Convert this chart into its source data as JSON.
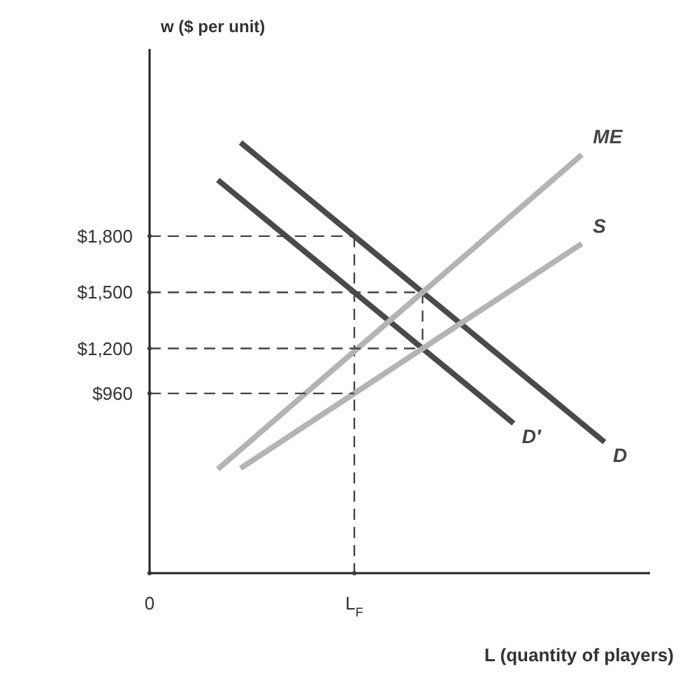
{
  "chart_data": {
    "type": "line",
    "ylabel": "w ($ per unit)",
    "xlabel": "L (quantity of players)",
    "categories": [
      "0",
      null,
      null,
      null,
      null,
      null,
      null,
      null,
      null,
      "L$_{F}$",
      null,
      null,
      null,
      null,
      null,
      null,
      null,
      null,
      null,
      null,
      null,
      null,
      null
    ],
    "ylim": [
      0,
      2800
    ],
    "yticks": [
      {
        "value": 960,
        "label": "$960"
      },
      {
        "value": 1200,
        "label": "$1,200"
      },
      {
        "value": 1500,
        "label": "$1,500"
      },
      {
        "value": 1800,
        "label": "$1,800"
      }
    ],
    "grid": false,
    "legend": false,
    "series": [
      {
        "name": "D",
        "color": "#4a4a4a",
        "values": [
          null,
          null,
          null,
          null,
          2300,
          2200,
          2100,
          2000,
          1900,
          1800,
          1700,
          1600,
          1500,
          1400,
          1300,
          1200,
          1100,
          1000,
          900,
          800,
          700,
          null,
          null
        ]
      },
      {
        "name": "D′",
        "color": "#4a4a4a",
        "values": [
          null,
          null,
          null,
          2100,
          2000,
          1900,
          1800,
          1700,
          1600,
          1500,
          1400,
          1300,
          1200,
          1100,
          1000,
          900,
          800,
          null,
          null,
          null,
          null,
          null,
          null
        ]
      },
      {
        "name": "ME",
        "color": "#b4b4b4",
        "values": [
          null,
          null,
          null,
          555,
          660,
          765,
          870,
          975,
          1080,
          1185,
          1290,
          1395,
          1500,
          1605,
          1710,
          1815,
          1920,
          2025,
          2130,
          2235,
          null,
          null,
          null
        ]
      },
      {
        "name": "S",
        "color": "#b4b4b4",
        "values": [
          null,
          null,
          null,
          null,
          560,
          640,
          720,
          800,
          880,
          960,
          1040,
          1120,
          1200,
          1280,
          1360,
          1440,
          1520,
          1600,
          1680,
          1760,
          null,
          null,
          null
        ]
      },
      {
        "color": "#444444",
        "line_style": "dashed",
        "values": [
          1800,
          1800,
          1800,
          1800,
          1800,
          1800,
          1800,
          1800,
          1800,
          1800,
          null,
          null,
          null,
          null,
          null,
          null,
          null,
          null,
          null,
          null,
          null,
          null,
          null
        ]
      },
      {
        "color": "#444444",
        "line_style": "dashed",
        "values": [
          960,
          960,
          960,
          960,
          960,
          960,
          960,
          960,
          960,
          960,
          null,
          null,
          null,
          null,
          null,
          null,
          null,
          null,
          null,
          null,
          null,
          null,
          null
        ]
      },
      {
        "color": "#444444",
        "line_style": "dashed",
        "values": [
          1500,
          1500,
          1500,
          1500,
          1500,
          1500,
          1500,
          1500,
          1500,
          1500,
          1500,
          1500,
          1500,
          null,
          null,
          null,
          null,
          null,
          null,
          null,
          null,
          null,
          null
        ]
      },
      {
        "color": "#444444",
        "line_style": "dashed",
        "values": [
          1200,
          1200,
          1200,
          1200,
          1200,
          1200,
          1200,
          1200,
          1200,
          1200,
          1200,
          1200,
          1200,
          null,
          null,
          null,
          null,
          null,
          null,
          null,
          null,
          null,
          null
        ]
      }
    ]
  }
}
